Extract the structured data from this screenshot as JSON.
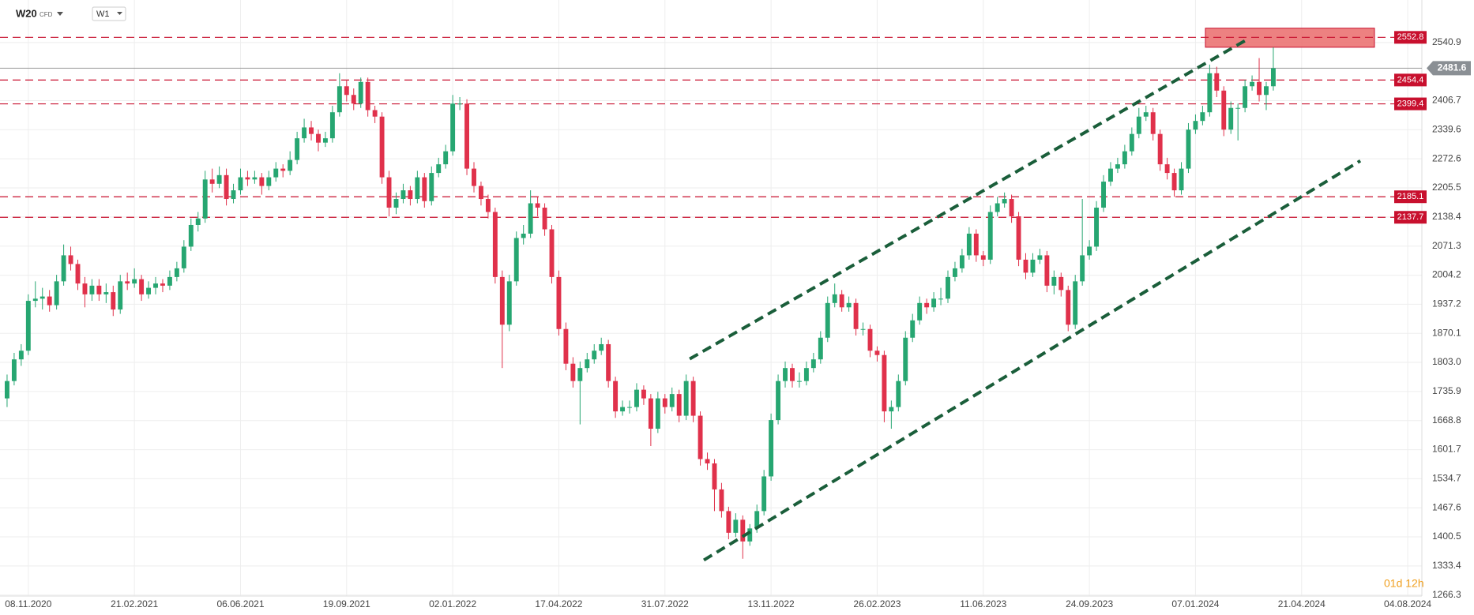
{
  "chart_data": {
    "type": "candlestick",
    "symbol": "W20",
    "instrument_type": "CFD",
    "timeframe": "W1",
    "countdown": "01d 12h",
    "up_color": "#26a671",
    "down_color": "#e0314b",
    "level_color": "#c8102e",
    "trend_color": "#1a5e3a",
    "grid": true,
    "ylim": [
      1264,
      2639
    ],
    "xlim": [
      -4,
      197
    ],
    "yticks": [
      2540.9,
      2406.7,
      2339.6,
      2272.6,
      2205.5,
      2138.4,
      2071.3,
      2004.2,
      1937.2,
      1870.1,
      {
        "value": 1803,
        "label": "1803.0"
      },
      1735.9,
      1668.8,
      1601.7,
      1534.7,
      1467.6,
      1400.5,
      1333.4,
      1266.3
    ],
    "xticks": [
      {
        "value": 0,
        "label": "08.11.2020"
      },
      {
        "value": 15,
        "label": "21.02.2021"
      },
      {
        "value": 30,
        "label": "06.06.2021"
      },
      {
        "value": 45,
        "label": "19.09.2021"
      },
      {
        "value": 60,
        "label": "02.01.2022"
      },
      {
        "value": 75,
        "label": "17.04.2022"
      },
      {
        "value": 90,
        "label": "31.07.2022"
      },
      {
        "value": 105,
        "label": "13.11.2022"
      },
      {
        "value": 120,
        "label": "26.02.2023"
      },
      {
        "value": 135,
        "label": "11.06.2023"
      },
      {
        "value": 150,
        "label": "24.09.2023"
      },
      {
        "value": 165,
        "label": "07.01.2024"
      },
      {
        "value": 180,
        "label": "21.04.2024"
      },
      {
        "value": 195,
        "label": "04.08.2024"
      }
    ],
    "levels": [
      2552.8,
      2454.4,
      2399.4,
      2185.1,
      2137.7
    ],
    "last_price": 2481.6,
    "zone": {
      "x": [
        166.4,
        190.3
      ],
      "y": [
        2530,
        2574
      ]
    },
    "trend_lines": [
      {
        "x": [
          93.5,
          172.2
        ],
        "y": [
          1811,
          2547
        ]
      },
      {
        "x": [
          95.5,
          188.3
        ],
        "y": [
          1347,
          2268
        ]
      }
    ],
    "x": [
      -3,
      -2,
      -1,
      0,
      1,
      2,
      3,
      4,
      5,
      6,
      7,
      8,
      9,
      10,
      11,
      12,
      13,
      14,
      15,
      16,
      17,
      18,
      19,
      20,
      21,
      22,
      23,
      24,
      25,
      26,
      27,
      28,
      29,
      30,
      31,
      32,
      33,
      34,
      35,
      36,
      37,
      38,
      39,
      40,
      41,
      42,
      43,
      44,
      45,
      46,
      47,
      48,
      49,
      50,
      51,
      52,
      53,
      54,
      55,
      56,
      57,
      58,
      59,
      60,
      61,
      62,
      63,
      64,
      65,
      66,
      67,
      68,
      69,
      70,
      71,
      72,
      73,
      74,
      75,
      76,
      77,
      78,
      79,
      80,
      81,
      82,
      83,
      84,
      85,
      86,
      87,
      88,
      89,
      90,
      91,
      92,
      93,
      94,
      95,
      96,
      97,
      98,
      99,
      100,
      101,
      102,
      103,
      104,
      105,
      106,
      107,
      108,
      109,
      110,
      111,
      112,
      113,
      114,
      115,
      116,
      117,
      118,
      119,
      120,
      121,
      122,
      123,
      124,
      125,
      126,
      127,
      128,
      129,
      130,
      131,
      132,
      133,
      134,
      135,
      136,
      137,
      138,
      139,
      140,
      141,
      142,
      143,
      144,
      145,
      146,
      147,
      148,
      149,
      150,
      151,
      152,
      153,
      154,
      155,
      156,
      157,
      158,
      159,
      160,
      161,
      162,
      163,
      164,
      165,
      166,
      167,
      168,
      169,
      170,
      171,
      172,
      173,
      174,
      175,
      176
    ],
    "candles": [
      [
        1720,
        1775,
        1700,
        1760
      ],
      [
        1760,
        1825,
        1750,
        1810
      ],
      [
        1810,
        1845,
        1795,
        1830
      ],
      [
        1830,
        1960,
        1820,
        1945
      ],
      [
        1945,
        1990,
        1930,
        1950
      ],
      [
        1950,
        1975,
        1925,
        1955
      ],
      [
        1955,
        1970,
        1920,
        1935
      ],
      [
        1935,
        2005,
        1925,
        1990
      ],
      [
        1990,
        2075,
        1980,
        2050
      ],
      [
        2050,
        2070,
        2015,
        2030
      ],
      [
        2030,
        2040,
        1970,
        1985
      ],
      [
        1985,
        2000,
        1930,
        1960
      ],
      [
        1960,
        1995,
        1945,
        1980
      ],
      [
        1980,
        1995,
        1945,
        1960
      ],
      [
        1960,
        1985,
        1940,
        1965
      ],
      [
        1965,
        1980,
        1910,
        1925
      ],
      [
        1925,
        2005,
        1915,
        1990
      ],
      [
        1990,
        2010,
        1970,
        1985
      ],
      [
        1985,
        2020,
        1975,
        1995
      ],
      [
        1995,
        2005,
        1945,
        1960
      ],
      [
        1960,
        1990,
        1950,
        1975
      ],
      [
        1975,
        2000,
        1960,
        1985
      ],
      [
        1985,
        1995,
        1965,
        1980
      ],
      [
        1980,
        2015,
        1970,
        2000
      ],
      [
        2000,
        2035,
        1990,
        2020
      ],
      [
        2020,
        2085,
        2010,
        2070
      ],
      [
        2070,
        2135,
        2060,
        2120
      ],
      [
        2120,
        2150,
        2105,
        2135
      ],
      [
        2135,
        2245,
        2125,
        2225
      ],
      [
        2225,
        2250,
        2195,
        2215
      ],
      [
        2215,
        2255,
        2205,
        2235
      ],
      [
        2235,
        2250,
        2165,
        2180
      ],
      [
        2180,
        2215,
        2170,
        2200
      ],
      [
        2200,
        2250,
        2190,
        2230
      ],
      [
        2230,
        2245,
        2210,
        2225
      ],
      [
        2225,
        2245,
        2215,
        2230
      ],
      [
        2230,
        2240,
        2190,
        2210
      ],
      [
        2210,
        2245,
        2200,
        2230
      ],
      [
        2230,
        2265,
        2220,
        2250
      ],
      [
        2250,
        2260,
        2230,
        2245
      ],
      [
        2245,
        2290,
        2235,
        2270
      ],
      [
        2270,
        2335,
        2260,
        2320
      ],
      [
        2320,
        2365,
        2310,
        2345
      ],
      [
        2345,
        2360,
        2315,
        2330
      ],
      [
        2330,
        2340,
        2290,
        2310
      ],
      [
        2310,
        2335,
        2300,
        2320
      ],
      [
        2320,
        2395,
        2310,
        2380
      ],
      [
        2380,
        2470,
        2370,
        2440
      ],
      [
        2440,
        2455,
        2405,
        2420
      ],
      [
        2420,
        2435,
        2385,
        2400
      ],
      [
        2400,
        2460,
        2390,
        2450
      ],
      [
        2450,
        2460,
        2370,
        2385
      ],
      [
        2385,
        2395,
        2355,
        2370
      ],
      [
        2370,
        2380,
        2215,
        2230
      ],
      [
        2230,
        2245,
        2140,
        2160
      ],
      [
        2160,
        2195,
        2145,
        2180
      ],
      [
        2180,
        2215,
        2170,
        2200
      ],
      [
        2200,
        2210,
        2165,
        2180
      ],
      [
        2180,
        2245,
        2170,
        2230
      ],
      [
        2230,
        2240,
        2160,
        2175
      ],
      [
        2175,
        2255,
        2165,
        2240
      ],
      [
        2240,
        2275,
        2230,
        2260
      ],
      [
        2260,
        2305,
        2250,
        2290
      ],
      [
        2290,
        2420,
        2280,
        2400
      ],
      [
        2400,
        2415,
        2385,
        2400
      ],
      [
        2400,
        2410,
        2235,
        2250
      ],
      [
        2250,
        2265,
        2195,
        2210
      ],
      [
        2210,
        2220,
        2165,
        2180
      ],
      [
        2180,
        2190,
        2135,
        2150
      ],
      [
        2150,
        2160,
        1985,
        2000
      ],
      [
        2000,
        2015,
        1790,
        1890
      ],
      [
        1890,
        2005,
        1875,
        1990
      ],
      [
        1990,
        2105,
        1980,
        2090
      ],
      [
        2090,
        2120,
        2075,
        2100
      ],
      [
        2100,
        2200,
        2090,
        2170
      ],
      [
        2170,
        2185,
        2140,
        2160
      ],
      [
        2160,
        2170,
        2095,
        2110
      ],
      [
        2110,
        2120,
        1985,
        2000
      ],
      [
        2000,
        2015,
        1865,
        1880
      ],
      [
        1880,
        1895,
        1785,
        1800
      ],
      [
        1800,
        1815,
        1745,
        1760
      ],
      [
        1760,
        1805,
        1660,
        1790
      ],
      [
        1790,
        1825,
        1780,
        1810
      ],
      [
        1810,
        1845,
        1800,
        1830
      ],
      [
        1830,
        1860,
        1820,
        1845
      ],
      [
        1845,
        1855,
        1745,
        1760
      ],
      [
        1760,
        1770,
        1675,
        1690
      ],
      [
        1690,
        1715,
        1680,
        1700
      ],
      [
        1700,
        1715,
        1685,
        1700
      ],
      [
        1700,
        1755,
        1690,
        1740
      ],
      [
        1740,
        1750,
        1705,
        1720
      ],
      [
        1720,
        1730,
        1610,
        1650
      ],
      [
        1650,
        1735,
        1640,
        1720
      ],
      [
        1720,
        1730,
        1685,
        1700
      ],
      [
        1700,
        1745,
        1690,
        1730
      ],
      [
        1730,
        1740,
        1665,
        1680
      ],
      [
        1680,
        1775,
        1670,
        1760
      ],
      [
        1760,
        1770,
        1665,
        1680
      ],
      [
        1680,
        1690,
        1565,
        1580
      ],
      [
        1580,
        1595,
        1555,
        1570
      ],
      [
        1570,
        1580,
        1460,
        1510
      ],
      [
        1510,
        1525,
        1445,
        1460
      ],
      [
        1460,
        1470,
        1395,
        1410
      ],
      [
        1410,
        1455,
        1400,
        1440
      ],
      [
        1440,
        1450,
        1350,
        1390
      ],
      [
        1390,
        1430,
        1380,
        1420
      ],
      [
        1420,
        1475,
        1410,
        1460
      ],
      [
        1460,
        1555,
        1450,
        1540
      ],
      [
        1540,
        1685,
        1530,
        1670
      ],
      [
        1670,
        1775,
        1660,
        1760
      ],
      [
        1760,
        1805,
        1745,
        1790
      ],
      [
        1790,
        1800,
        1745,
        1760
      ],
      [
        1760,
        1780,
        1745,
        1760
      ],
      [
        1760,
        1805,
        1750,
        1790
      ],
      [
        1790,
        1825,
        1780,
        1810
      ],
      [
        1810,
        1875,
        1800,
        1860
      ],
      [
        1860,
        1955,
        1850,
        1940
      ],
      [
        1940,
        1985,
        1930,
        1960
      ],
      [
        1960,
        1970,
        1920,
        1930
      ],
      [
        1930,
        1955,
        1920,
        1940
      ],
      [
        1940,
        1950,
        1865,
        1880
      ],
      [
        1880,
        1895,
        1865,
        1880
      ],
      [
        1880,
        1890,
        1815,
        1830
      ],
      [
        1830,
        1840,
        1805,
        1820
      ],
      [
        1820,
        1830,
        1665,
        1690
      ],
      [
        1690,
        1715,
        1650,
        1700
      ],
      [
        1700,
        1775,
        1690,
        1760
      ],
      [
        1760,
        1875,
        1750,
        1860
      ],
      [
        1860,
        1915,
        1850,
        1900
      ],
      [
        1900,
        1955,
        1890,
        1940
      ],
      [
        1940,
        1950,
        1915,
        1930
      ],
      [
        1930,
        1965,
        1920,
        1950
      ],
      [
        1950,
        1975,
        1935,
        1950
      ],
      [
        1950,
        2015,
        1940,
        2000
      ],
      [
        2000,
        2035,
        1990,
        2020
      ],
      [
        2020,
        2065,
        2010,
        2050
      ],
      [
        2050,
        2115,
        2040,
        2100
      ],
      [
        2100,
        2110,
        2035,
        2050
      ],
      [
        2050,
        2060,
        2025,
        2040
      ],
      [
        2040,
        2165,
        2030,
        2150
      ],
      [
        2150,
        2185,
        2140,
        2170
      ],
      [
        2170,
        2195,
        2160,
        2180
      ],
      [
        2180,
        2190,
        2125,
        2140
      ],
      [
        2140,
        2150,
        2025,
        2040
      ],
      [
        2040,
        2055,
        1995,
        2010
      ],
      [
        2010,
        2055,
        2000,
        2040
      ],
      [
        2040,
        2065,
        2030,
        2050
      ],
      [
        2050,
        2060,
        1965,
        1980
      ],
      [
        1980,
        2015,
        1960,
        2000
      ],
      [
        2000,
        2010,
        1955,
        1970
      ],
      [
        1970,
        1980,
        1875,
        1890
      ],
      [
        1890,
        2005,
        1880,
        1990
      ],
      [
        1990,
        2180,
        1980,
        2050
      ],
      [
        2050,
        2085,
        2040,
        2070
      ],
      [
        2070,
        2175,
        2060,
        2160
      ],
      [
        2160,
        2235,
        2150,
        2220
      ],
      [
        2220,
        2265,
        2210,
        2250
      ],
      [
        2250,
        2275,
        2240,
        2260
      ],
      [
        2260,
        2305,
        2250,
        2290
      ],
      [
        2290,
        2345,
        2280,
        2330
      ],
      [
        2330,
        2390,
        2320,
        2370
      ],
      [
        2370,
        2395,
        2360,
        2380
      ],
      [
        2380,
        2390,
        2315,
        2330
      ],
      [
        2330,
        2340,
        2245,
        2260
      ],
      [
        2260,
        2275,
        2225,
        2240
      ],
      [
        2240,
        2250,
        2185,
        2200
      ],
      [
        2200,
        2265,
        2190,
        2250
      ],
      [
        2250,
        2355,
        2240,
        2340
      ],
      [
        2340,
        2375,
        2330,
        2360
      ],
      [
        2360,
        2395,
        2350,
        2380
      ],
      [
        2380,
        2490,
        2370,
        2470
      ],
      [
        2470,
        2485,
        2415,
        2430
      ],
      [
        2430,
        2440,
        2325,
        2340
      ],
      [
        2340,
        2405,
        2330,
        2390
      ],
      [
        2390,
        2400,
        2315,
        2390
      ],
      [
        2390,
        2455,
        2380,
        2440
      ],
      [
        2440,
        2465,
        2430,
        2450
      ],
      [
        2450,
        2505,
        2405,
        2420
      ],
      [
        2420,
        2450,
        2385,
        2440
      ],
      [
        2440,
        2530,
        2430,
        2481.6
      ]
    ]
  }
}
